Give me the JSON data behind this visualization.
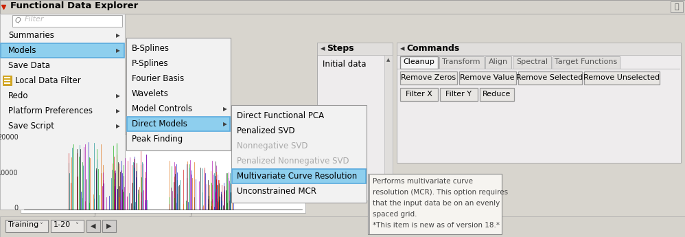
{
  "title": "Functional Data Explorer",
  "figsize": [
    9.98,
    3.45
  ],
  "dpi": 100,
  "bg_color": "#d8d5ce",
  "panel_bg": "#f0efed",
  "white": "#ffffff",
  "light_gray": "#e8e8e8",
  "mid_gray": "#c8c8c8",
  "blue_highlight": "#5aabde",
  "selected_blue": "#8ecfee",
  "selected_blue_dark": "#4a9fcf",
  "text_color": "#000000",
  "gray_text": "#aaaaaa",
  "menu_bg": "#f2f2f2",
  "menu_items_left": [
    "Summaries",
    "Models",
    "Save Data",
    "Local Data Filter",
    "Redo",
    "Platform Preferences",
    "Save Script"
  ],
  "menu_items_left_arrow": [
    true,
    true,
    false,
    false,
    true,
    true,
    true
  ],
  "menu_items_mid": [
    "B-Splines",
    "P-Splines",
    "Fourier Basis",
    "Wavelets",
    "Model Controls",
    "Direct Models",
    "Peak Finding"
  ],
  "menu_items_mid_arrow": [
    false,
    false,
    false,
    false,
    true,
    true,
    false
  ],
  "menu_items_right": [
    "Direct Functional PCA",
    "Penalized SVD",
    "Nonnegative SVD",
    "Penalized Nonnegative SVD",
    "Multivariate Curve Resolution",
    "Unconstrained MCR"
  ],
  "menu_items_right_grayed": [
    false,
    false,
    true,
    true,
    false,
    false
  ],
  "tab_labels": [
    "Cleanup",
    "Transform",
    "Align",
    "Spectral",
    "Target Functions"
  ],
  "tab_active": 0,
  "btn_row1": [
    "Remove Zeros",
    "Remove Value",
    "Remove Selected",
    "Remove Unselected"
  ],
  "btn_row2": [
    "Filter X",
    "Filter Y",
    "Reduce"
  ],
  "steps_label": "Steps",
  "steps_item": "Initial data",
  "commands_label": "Commands",
  "tooltip_lines": [
    "Performs multivariate curve",
    "resolution (MCR). This option requires",
    "that the input data be on an evenly",
    "spaced grid.",
    "*This item is new as of version 18.*"
  ],
  "bottom_bar": [
    "Training",
    "1-20"
  ]
}
